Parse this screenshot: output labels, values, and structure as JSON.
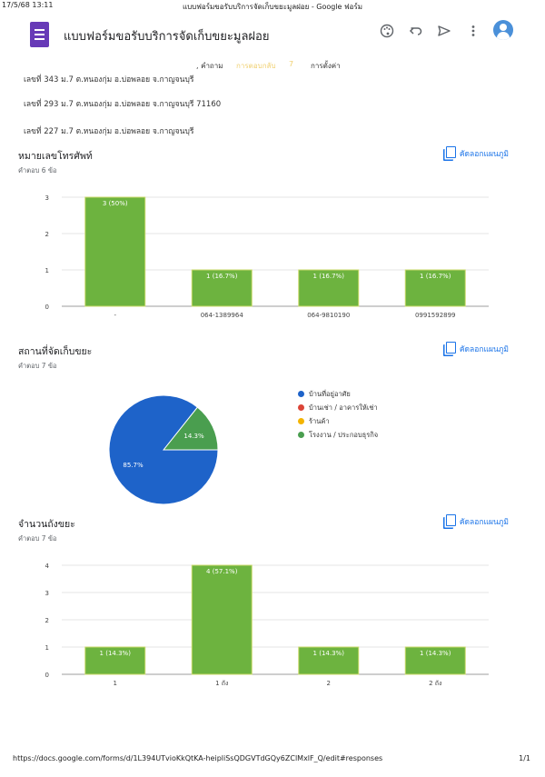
{
  "print": {
    "date": "17/5/68 13:11",
    "title": "แบบฟอร์มขอรับบริการจัดเก็บขยะมูลฝอย - Google ฟอร์ม",
    "url": "https://docs.google.com/forms/d/1L394UTvioKkQtKA-heipliSsQDGVTdGQy6ZClMxlF_Q/edit#responses",
    "page": "1/1"
  },
  "app": {
    "title": "แบบฟอร์มขอรับบริการจัดเก็บขยะมูลฝอย",
    "icons": [
      "palette-icon",
      "undo-icon",
      "send-icon",
      "more-vert-icon",
      "avatar-icon"
    ]
  },
  "tabs": {
    "questions": ", คำถาม",
    "responses": "การตอบกลับ",
    "response_count": "7",
    "settings": "การตั้งค่า"
  },
  "addresses": [
    "เลขที่ 343 ม.7 ต.หนองกุ่ม อ.บ่อพลอย จ.กาญจนบุรี",
    "เลขที่ 293 ม.7 ต.หนองกุ่ม อ.บ่อพลอย จ.กาญจนบุรี 71160",
    "เลขที่ 227 ม.7 ต.หนองกุ่ม อ.บ่อพลอย จ.กาญจนบุรี"
  ],
  "copy_label": "คัดลอกแผนภูมิ",
  "colors": {
    "bar": "#6db33f",
    "accent": "#1a73e8",
    "pie_main": "#1e63c9",
    "pie_green": "#4a9e4f"
  },
  "cards": {
    "phone": {
      "title": "หมายเลขโทรศัพท์",
      "subtitle": "คำตอบ 6 ข้อ"
    },
    "place": {
      "title": "สถานที่จัดเก็บขยะ",
      "subtitle": "คำตอบ 7 ข้อ"
    },
    "bins": {
      "title": "จำนวนถังขยะ",
      "subtitle": "คำตอบ 7 ข้อ"
    }
  },
  "chart_data": [
    {
      "type": "bar",
      "categories": [
        "-",
        "064-1389964",
        "064-9810190",
        "0991592899"
      ],
      "values": [
        3,
        1,
        1,
        1
      ],
      "labels": [
        "3 (50%)",
        "1 (16.7%)",
        "1 (16.7%)",
        "1 (16.7%)"
      ],
      "yticks": [
        "0",
        "1",
        "2",
        "3"
      ],
      "ylim": [
        0,
        3
      ]
    },
    {
      "type": "pie",
      "labels": [
        "บ้านที่อยู่อาศัย",
        "บ้านเช่า / อาคารให้เช่า",
        "ร้านค้า",
        "โรงงาน / ประกอบธุรกิจ"
      ],
      "values": [
        85.7,
        0,
        0,
        14.3
      ],
      "slice_labels": [
        "85.7%",
        "",
        "",
        "14.3%"
      ],
      "colors": [
        "#1e63c9",
        "#db4437",
        "#f4b400",
        "#4a9e4f"
      ],
      "legend": "right"
    },
    {
      "type": "bar",
      "categories": [
        "1",
        "1 ถัง",
        "2",
        "2 ถัง"
      ],
      "values": [
        1,
        4,
        1,
        1
      ],
      "labels": [
        "1 (14.3%)",
        "4 (57.1%)",
        "1 (14.3%)",
        "1 (14.3%)"
      ],
      "yticks": [
        "0",
        "1",
        "2",
        "3",
        "4"
      ],
      "ylim": [
        0,
        4
      ]
    }
  ]
}
